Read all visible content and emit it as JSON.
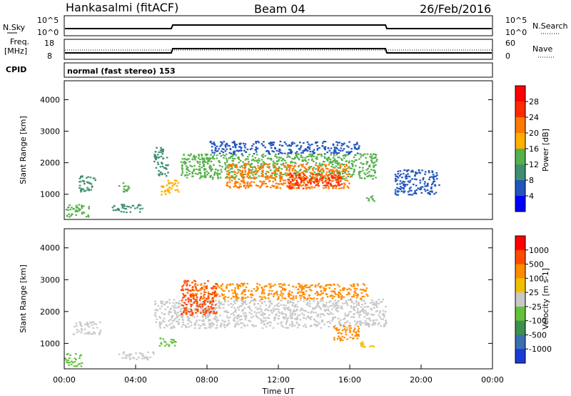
{
  "header": {
    "station": "Hankasalmi (fitACF)",
    "beam": "Beam 04",
    "date": "26/Feb/2016"
  },
  "top_panels": {
    "nsky_label": "N.Sky",
    "nsearch_label": "N.Search",
    "nsky_ticks": [
      "10^5",
      "10^0"
    ],
    "nsearch_ticks": [
      "10^5",
      "10^0"
    ],
    "freq_label_1": "Freq.",
    "freq_label_2": "[MHz]",
    "freq_ticks": [
      "18",
      "8"
    ],
    "nave_label": "Nave",
    "nave_ticks": [
      "60",
      "0"
    ],
    "cpid_label": "CPID",
    "cpid_text": "normal (fast stereo) 153"
  },
  "chart_data": [
    {
      "type": "heatmap",
      "name": "power",
      "ylabel": "Slant Range [km]",
      "ylim": [
        200,
        4600
      ],
      "yticks": [
        1000,
        2000,
        3000,
        4000
      ],
      "xlim": [
        0,
        24
      ],
      "colorbar_label": "Power [dB]",
      "colorbar_ticks": [
        "4",
        "8",
        "12",
        "16",
        "20",
        "24",
        "28"
      ],
      "colorbar_colors": [
        "#0000ff",
        "#2255bb",
        "#3f8f6f",
        "#55b04a",
        "#ffb000",
        "#ff7a00",
        "#ff2a00",
        "#ff0000"
      ],
      "regions": [
        {
          "t0": 0.0,
          "t1": 1.4,
          "r0": 300,
          "r1": 700,
          "level": 3
        },
        {
          "t0": 0.8,
          "t1": 1.8,
          "r0": 1100,
          "r1": 1600,
          "level": 2
        },
        {
          "t0": 3.0,
          "t1": 3.6,
          "r0": 1100,
          "r1": 1400,
          "level": 3
        },
        {
          "t0": 2.6,
          "t1": 4.4,
          "r0": 450,
          "r1": 700,
          "level": 2
        },
        {
          "t0": 5.0,
          "t1": 5.8,
          "r0": 1600,
          "r1": 2500,
          "level": 2
        },
        {
          "t0": 5.4,
          "t1": 6.4,
          "r0": 1000,
          "r1": 1500,
          "level": 4
        },
        {
          "t0": 6.5,
          "t1": 17.5,
          "r0": 1500,
          "r1": 2300,
          "level": 3
        },
        {
          "t0": 9.0,
          "t1": 16.0,
          "r0": 1200,
          "r1": 2000,
          "level": 5
        },
        {
          "t0": 12.5,
          "t1": 15.5,
          "r0": 1200,
          "r1": 1700,
          "level": 6
        },
        {
          "t0": 8.0,
          "t1": 16.5,
          "r0": 2300,
          "r1": 2700,
          "level": 1
        },
        {
          "t0": 16.8,
          "t1": 17.4,
          "r0": 800,
          "r1": 1000,
          "level": 3
        },
        {
          "t0": 18.5,
          "t1": 21.0,
          "r0": 1000,
          "r1": 1800,
          "level": 1
        }
      ]
    },
    {
      "type": "heatmap",
      "name": "velocity",
      "ylabel": "Slant Range [km]",
      "ylim": [
        200,
        4600
      ],
      "yticks": [
        1000,
        2000,
        3000,
        4000
      ],
      "xlim": [
        0,
        24
      ],
      "xticks": [
        "00:00",
        "04:00",
        "08:00",
        "12:00",
        "16:00",
        "20:00",
        "00:00"
      ],
      "xlabel": "Time UT",
      "colorbar_label": "Velocity [m s-1]",
      "colorbar_ticks": [
        "1000",
        "500",
        "100",
        "25",
        "-25",
        "-100",
        "-500",
        "-1000"
      ],
      "colorbar_colors": [
        "#1a3cd6",
        "#3a6fb0",
        "#3f8f4f",
        "#63c23a",
        "#c8c8c8",
        "#f0c000",
        "#ff8c00",
        "#ff4a00",
        "#ff0000"
      ],
      "regions": [
        {
          "t0": 5.0,
          "t1": 18.0,
          "r0": 1500,
          "r1": 2400,
          "level": 4
        },
        {
          "t0": 7.0,
          "t1": 17.0,
          "r0": 2400,
          "r1": 2900,
          "level": 6
        },
        {
          "t0": 6.5,
          "t1": 8.5,
          "r0": 1900,
          "r1": 3000,
          "level": 7
        },
        {
          "t0": 15.0,
          "t1": 16.5,
          "r0": 1100,
          "r1": 1600,
          "level": 6
        },
        {
          "t0": 16.5,
          "t1": 17.3,
          "r0": 900,
          "r1": 1100,
          "level": 5
        },
        {
          "t0": 0.0,
          "t1": 1.0,
          "r0": 300,
          "r1": 700,
          "level": 3
        },
        {
          "t0": 0.4,
          "t1": 2.0,
          "r0": 1300,
          "r1": 1700,
          "level": 4
        },
        {
          "t0": 3.0,
          "t1": 5.0,
          "r0": 500,
          "r1": 750,
          "level": 4
        },
        {
          "t0": 5.3,
          "t1": 6.2,
          "r0": 900,
          "r1": 1200,
          "level": 3
        }
      ]
    }
  ]
}
